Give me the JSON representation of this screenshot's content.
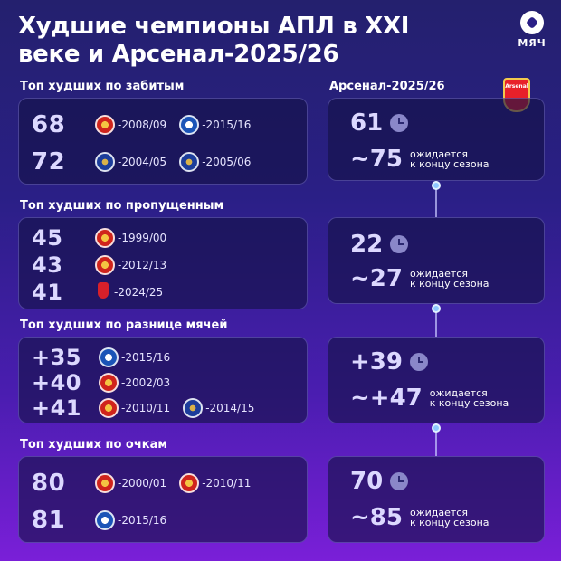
{
  "header": {
    "title_line1": "Худшие чемпионы АПЛ в XXI",
    "title_line2": "веке и Арсенал-2025/26",
    "logo_text": "МЯЧ"
  },
  "arsenal": {
    "label": "Арсенал-2025/26",
    "crest_text": "Arsenal"
  },
  "expected_note_line1": "ожидается",
  "expected_note_line2": "к концу сезона",
  "sections": [
    {
      "label": "Топ худших по забитым",
      "rows": [
        {
          "value": "68",
          "entries": [
            {
              "club": "Манчестер Юнайтед",
              "icon": "man-utd-crest",
              "season": "-2008/09"
            },
            {
              "club": "Лестер",
              "icon": "leicester-crest",
              "season": "-2015/16"
            }
          ]
        },
        {
          "value": "72",
          "entries": [
            {
              "club": "Челси",
              "icon": "chelsea-crest",
              "season": "-2004/05"
            },
            {
              "club": "Челси",
              "icon": "chelsea-crest",
              "season": "-2005/06"
            }
          ]
        }
      ],
      "arsenal_current": "61",
      "arsenal_expected": "~75"
    },
    {
      "label": "Топ худших по пропущенным",
      "rows": [
        {
          "value": "45",
          "entries": [
            {
              "club": "Манчестер Юнайтед",
              "icon": "man-utd-crest",
              "season": "-1999/00"
            }
          ]
        },
        {
          "value": "43",
          "entries": [
            {
              "club": "Манчестер Юнайтед",
              "icon": "man-utd-crest",
              "season": "-2012/13"
            }
          ]
        },
        {
          "value": "41",
          "entries": [
            {
              "club": "Ливерпуль",
              "icon": "liverpool-crest",
              "season": "-2024/25"
            }
          ]
        }
      ],
      "arsenal_current": "22",
      "arsenal_expected": "~27"
    },
    {
      "label": "Топ худших по разнице мячей",
      "rows": [
        {
          "value": "+35",
          "entries": [
            {
              "club": "Лестер",
              "icon": "leicester-crest",
              "season": "-2015/16"
            }
          ]
        },
        {
          "value": "+40",
          "entries": [
            {
              "club": "Манчестер Юнайтед",
              "icon": "man-utd-crest",
              "season": "-2002/03"
            }
          ]
        },
        {
          "value": "+41",
          "entries": [
            {
              "club": "Манчестер Юнайтед",
              "icon": "man-utd-crest",
              "season": "-2010/11"
            },
            {
              "club": "Челси",
              "icon": "chelsea-crest",
              "season": "-2014/15"
            }
          ]
        }
      ],
      "arsenal_current": "+39",
      "arsenal_expected": "~+47"
    },
    {
      "label": "Топ худших по очкам",
      "rows": [
        {
          "value": "80",
          "entries": [
            {
              "club": "Манчестер Юнайтед",
              "icon": "man-utd-crest",
              "season": "-2000/01"
            },
            {
              "club": "Манчестер Юнайтед",
              "icon": "man-utd-crest",
              "season": "-2010/11"
            }
          ]
        },
        {
          "value": "81",
          "entries": [
            {
              "club": "Лестер",
              "icon": "leicester-crest",
              "season": "-2015/16"
            }
          ]
        }
      ],
      "arsenal_current": "70",
      "arsenal_expected": "~85"
    }
  ]
}
